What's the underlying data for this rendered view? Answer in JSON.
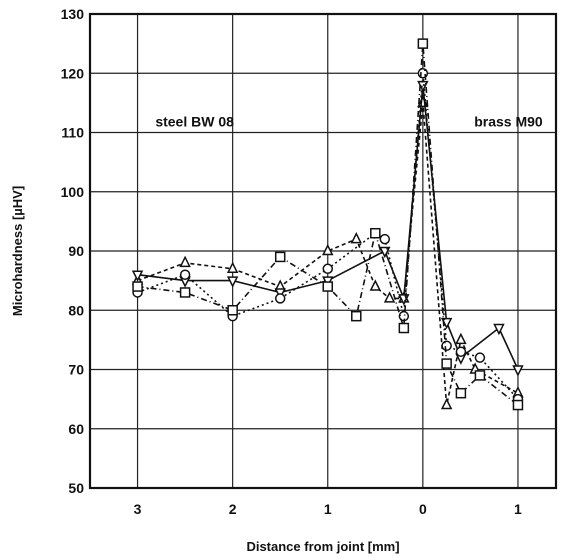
{
  "chart_data": {
    "type": "line",
    "xlabel": "Distance from joint [mm]",
    "ylabel": "Microhardness [µHV]",
    "xlim": [
      -3.5,
      1.4
    ],
    "ylim": [
      50,
      130
    ],
    "x_ticks": [
      -3,
      -2,
      -1,
      0,
      1
    ],
    "x_tick_labels": [
      "3",
      "2",
      "1",
      "0",
      "1"
    ],
    "y_ticks": [
      50,
      60,
      70,
      80,
      90,
      100,
      110,
      120,
      130
    ],
    "grid": true,
    "legend": "none",
    "annotations": [
      {
        "text": "steel  BW 08",
        "x": -2.4,
        "y": 111
      },
      {
        "text": "brass  M90",
        "x": 0.9,
        "y": 111
      }
    ],
    "series": [
      {
        "marker": "triangle",
        "dash": "4,3",
        "x": [
          -3,
          -2.5,
          -2,
          -1.5,
          -1,
          -0.7,
          -0.5,
          -0.35,
          -0.2,
          0,
          0.25,
          0.4,
          0.55,
          1
        ],
        "y": [
          85,
          88,
          87,
          84,
          90,
          92,
          84,
          82,
          82,
          115,
          64,
          75,
          70,
          66
        ]
      },
      {
        "marker": "down-triangle",
        "dash": "",
        "x": [
          -3,
          -2.5,
          -2,
          -1.5,
          -1,
          -0.4,
          -0.2,
          0,
          0.25,
          0.4,
          0.8,
          1
        ],
        "y": [
          86,
          85,
          85,
          83,
          85,
          90,
          82,
          118,
          78,
          72,
          77,
          70
        ]
      },
      {
        "marker": "circle",
        "dash": "2,3",
        "x": [
          -3,
          -2.5,
          -2,
          -1.5,
          -1,
          -0.5,
          -0.4,
          -0.2,
          0,
          0.25,
          0.4,
          0.6,
          1
        ],
        "y": [
          83,
          86,
          79,
          82,
          87,
          93,
          92,
          79,
          120,
          74,
          73,
          72,
          65
        ]
      },
      {
        "marker": "square",
        "dash": "6,3,1,3",
        "x": [
          -3,
          -2.5,
          -2,
          -1.5,
          -1,
          -0.7,
          -0.5,
          -0.2,
          0,
          0.25,
          0.4,
          0.6,
          1
        ],
        "y": [
          84,
          83,
          80,
          89,
          84,
          79,
          93,
          77,
          125,
          71,
          66,
          69,
          64
        ]
      }
    ]
  }
}
